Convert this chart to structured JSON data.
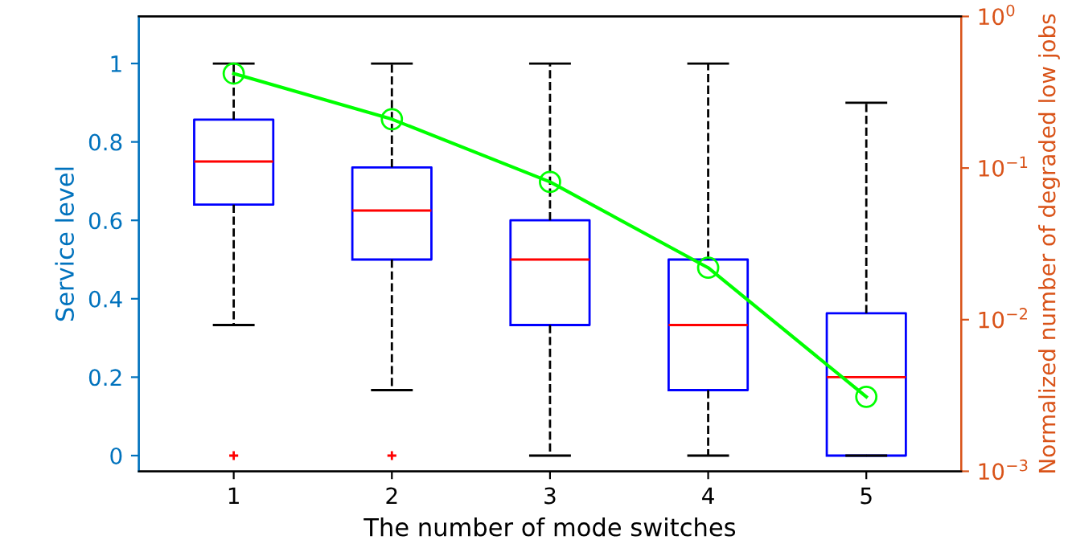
{
  "chart_data": {
    "type": "box",
    "xlabel": "The number of mode switches",
    "ylabel": "Service level",
    "y2label": "Normalized number of degraded low jobs",
    "categories": [
      "1",
      "2",
      "3",
      "4",
      "5"
    ],
    "ylim": [
      -0.04,
      1.12
    ],
    "yticks": [
      0,
      0.2,
      0.4,
      0.6,
      0.8,
      1
    ],
    "y2lim": [
      0.001,
      1
    ],
    "y2ticks": [
      {
        "value": 0.001,
        "label": "10$^{−3}$"
      },
      {
        "value": 0.01,
        "label": "10$^{−2}$"
      },
      {
        "value": 0.1,
        "label": "10$^{−1}$"
      },
      {
        "value": 1,
        "label": "10$^{0}$"
      }
    ],
    "log": "y2",
    "grid": false,
    "series": [
      {
        "color": "#0000ff",
        "boxes": [
          {
            "low": 0.333,
            "q1": 0.64,
            "median": 0.75,
            "q3": 0.857,
            "high": 1,
            "outliers": [
              0
            ]
          },
          {
            "low": 0.167,
            "q1": 0.5,
            "median": 0.625,
            "q3": 0.735,
            "high": 1,
            "outliers": [
              0
            ]
          },
          {
            "low": 0,
            "q1": 0.333,
            "median": 0.5,
            "q3": 0.6,
            "high": 1
          },
          {
            "low": 0,
            "q1": 0.167,
            "median": 0.333,
            "q3": 0.5,
            "high": 1
          },
          {
            "low": 0,
            "q1": 0,
            "median": 0.2,
            "q3": 0.363,
            "high": 0.9
          }
        ]
      },
      {
        "type": "line",
        "axis": "y2",
        "color": "#00ff00",
        "marker": "circle",
        "line_style": "solid",
        "values": [
          0.42,
          0.21,
          0.081,
          0.022,
          0.0031
        ]
      }
    ]
  }
}
